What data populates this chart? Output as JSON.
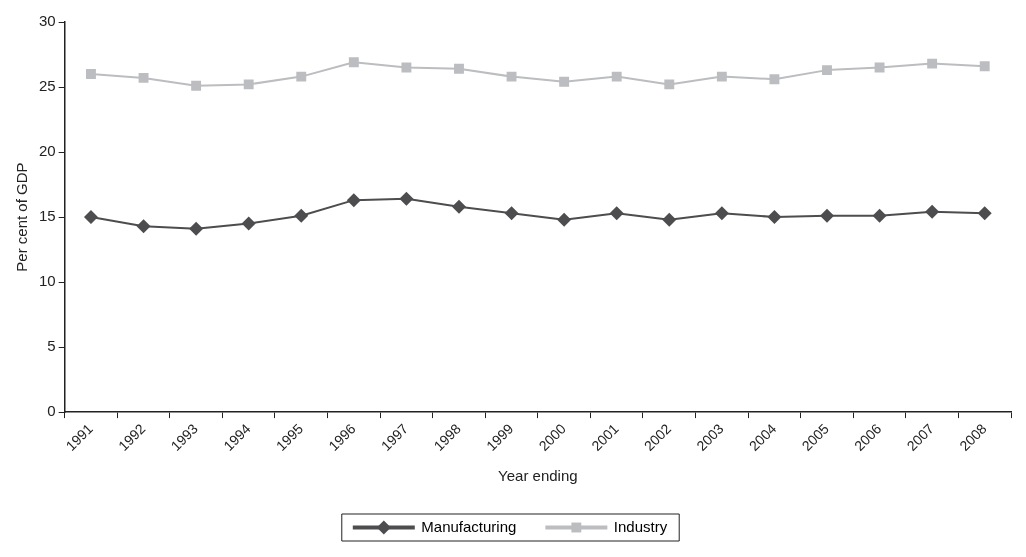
{
  "chart_data": {
    "type": "line",
    "xlabel": "Year ending",
    "ylabel": "Per cent of GDP",
    "categories": [
      "1991",
      "1992",
      "1993",
      "1994",
      "1995",
      "1996",
      "1997",
      "1998",
      "1999",
      "2000",
      "2001",
      "2002",
      "2003",
      "2004",
      "2005",
      "2006",
      "2007",
      "2008"
    ],
    "series": [
      {
        "name": "Manufacturing",
        "color": "#4d4d4f",
        "marker": "diamond",
        "values": [
          15.0,
          14.3,
          14.1,
          14.5,
          15.1,
          16.3,
          16.4,
          15.8,
          15.3,
          14.8,
          15.3,
          14.8,
          15.3,
          15.0,
          15.1,
          15.1,
          15.4,
          15.3
        ]
      },
      {
        "name": "Industry",
        "color": "#bcbdc0",
        "marker": "square",
        "values": [
          26.0,
          25.7,
          25.1,
          25.2,
          25.8,
          26.9,
          26.5,
          26.4,
          25.8,
          25.4,
          25.8,
          25.2,
          25.8,
          25.6,
          26.3,
          26.5,
          26.8,
          26.6
        ]
      }
    ],
    "ylim": [
      0,
      30
    ],
    "yticks": [
      0,
      5,
      10,
      15,
      20,
      25,
      30
    ],
    "grid": false,
    "legend": "bottom",
    "line_style": "solid"
  }
}
